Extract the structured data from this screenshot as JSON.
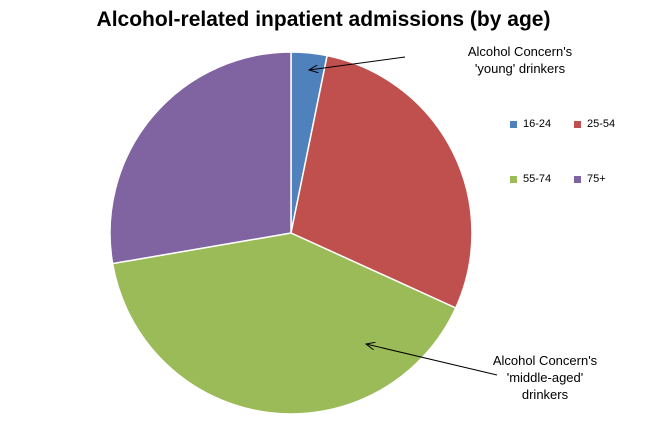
{
  "chart_data": {
    "type": "pie",
    "title": "Alcohol-related inpatient admissions (by age)",
    "categories": [
      "16-24",
      "25-54",
      "55-74",
      "75+"
    ],
    "values": [
      3.2,
      28.6,
      40.5,
      27.7
    ],
    "colors": [
      "#4f81bd",
      "#c0504d",
      "#9bbb59",
      "#8064a2"
    ],
    "start_angle_deg": 0,
    "direction": "clockwise",
    "legend_position": "right",
    "annotations": [
      {
        "lines": [
          "Alcohol Concern's",
          "'young' drinkers"
        ],
        "points_to": "16-24"
      },
      {
        "lines": [
          "Alcohol Concern's",
          "'middle-aged'",
          "drinkers"
        ],
        "points_to": "55-74"
      }
    ]
  }
}
